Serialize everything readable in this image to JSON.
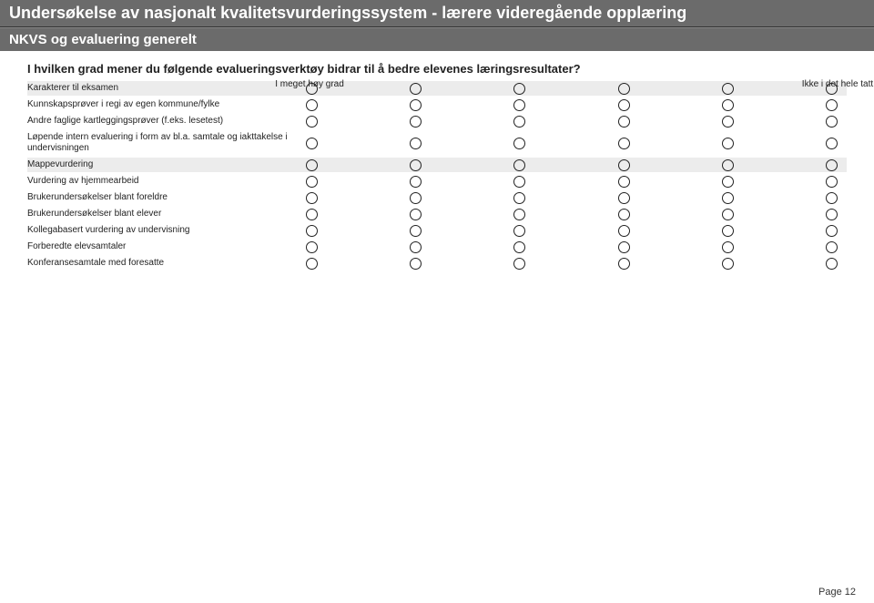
{
  "header": {
    "title": "Undersøkelse av nasjonalt kvalitetsvurderingssystem - lærere videregående opplæring",
    "subtitle": "NKVS og evaluering generelt"
  },
  "question": "I hvilken grad mener du følgende evalueringsverktøy bidrar til å bedre elevenes læringsresultater?",
  "scale": {
    "left": "I meget høy grad",
    "right": "Ikke i det hele tatt"
  },
  "options_count": 6,
  "rows": [
    {
      "label": "Karakterer til eksamen",
      "shaded": true
    },
    {
      "label": "Kunnskapsprøver i regi av egen kommune/fylke",
      "shaded": false
    },
    {
      "label": "Andre faglige kartleggingsprøver (f.eks. lesetest)",
      "shaded": false
    },
    {
      "label": "Løpende intern evaluering i form av bl.a. samtale og iakttakelse i undervisningen",
      "shaded": false
    },
    {
      "label": "Mappevurdering",
      "shaded": true
    },
    {
      "label": "Vurdering av hjemmearbeid",
      "shaded": false
    },
    {
      "label": "Brukerundersøkelser blant foreldre",
      "shaded": false
    },
    {
      "label": "Brukerundersøkelser blant elever",
      "shaded": false
    },
    {
      "label": "Kollegabasert vurdering av undervisning",
      "shaded": false
    },
    {
      "label": "Forberedte elevsamtaler",
      "shaded": false
    },
    {
      "label": "Konferansesamtale med foresatte",
      "shaded": false
    }
  ],
  "footer": "Page 12",
  "colors": {
    "header_bg": "#6b6b6b",
    "header_text": "#ffffff",
    "row_shade": "#ececec",
    "circle_border": "#222222",
    "page_bg": "#ffffff"
  }
}
